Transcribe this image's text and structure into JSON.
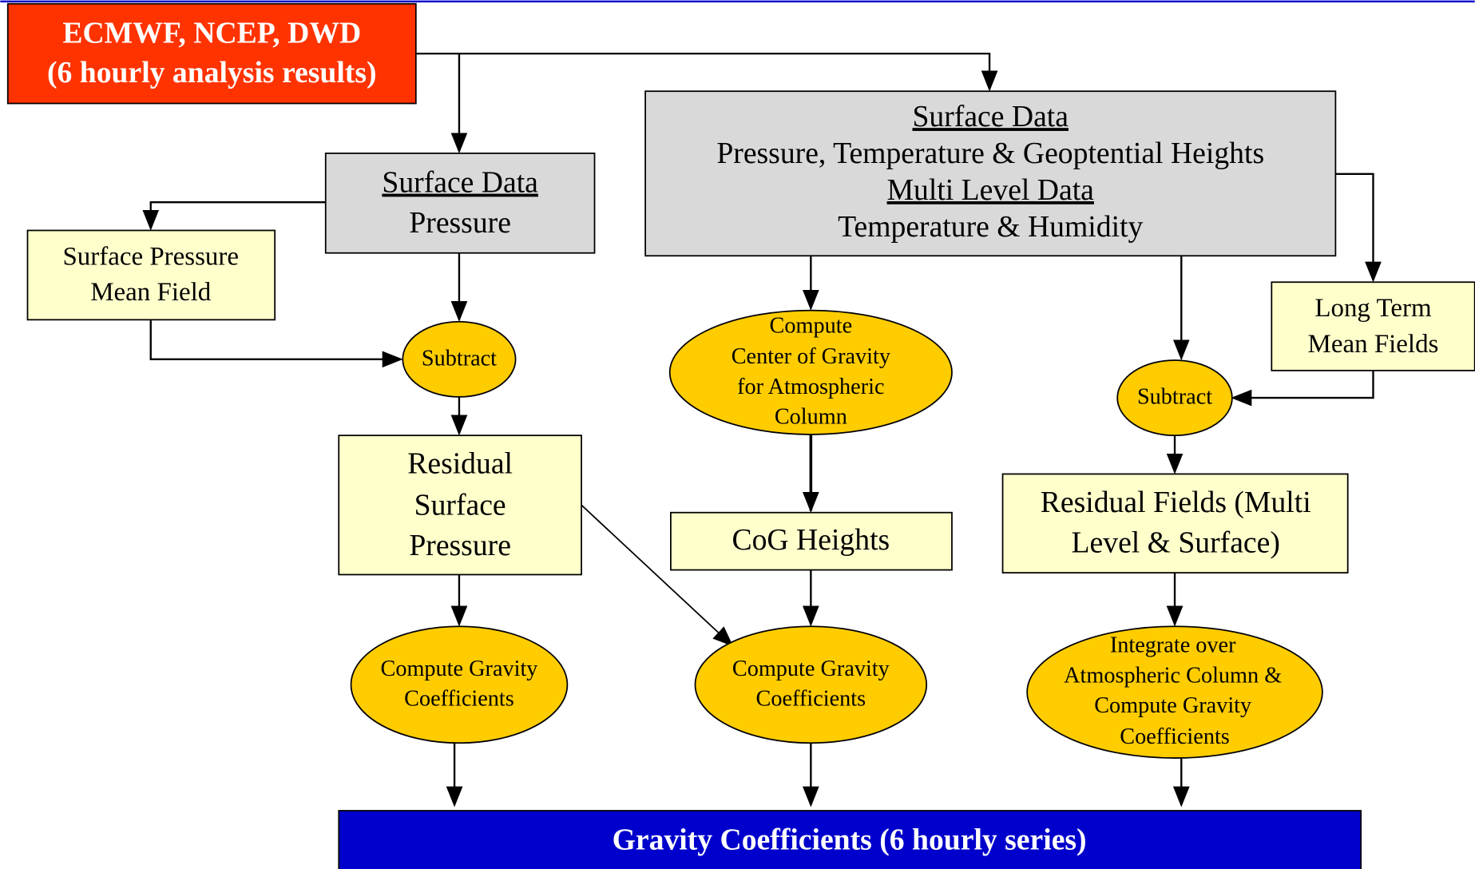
{
  "header": {
    "title": [
      "ECMWF, NCEP, DWD",
      "(6 hourly analysis results)"
    ]
  },
  "nodes": [
    {
      "lines": [
        "Surface Data",
        "Pressure"
      ]
    },
    {
      "lines": [
        "Surface Data",
        "Pressure, Temperature & Geoptential Heights",
        "Multi Level Data",
        "Temperature & Humidity"
      ]
    },
    {
      "lines": [
        "Surface Pressure",
        "Mean Field"
      ]
    },
    {
      "lines": [
        "Subtract"
      ]
    },
    {
      "lines": [
        "Long Term",
        "Mean Fields"
      ]
    },
    {
      "lines": [
        "Compute",
        "Center of Gravity",
        "for Atmospheric",
        "Column"
      ]
    },
    {
      "lines": [
        "Subtract"
      ]
    },
    {
      "lines": [
        "Residual",
        "Surface",
        "Pressure"
      ]
    },
    {
      "lines": [
        "CoG Heights"
      ]
    },
    {
      "lines": [
        "Residual Fields (Multi",
        "Level & Surface)"
      ]
    },
    {
      "lines": [
        "Compute Gravity",
        "Coefficients"
      ]
    },
    {
      "lines": [
        "Compute Gravity",
        "Coefficients"
      ]
    },
    {
      "lines": [
        "Integrate over",
        "Atmospheric Column &",
        "Compute Gravity",
        "Coefficients"
      ]
    }
  ],
  "footer": {
    "title": "Gravity Coefficients (6 hourly series)"
  }
}
